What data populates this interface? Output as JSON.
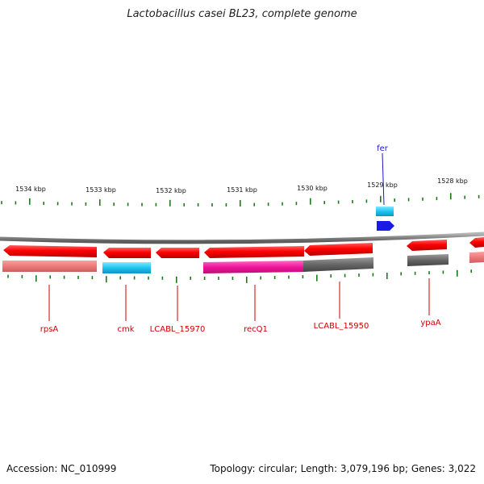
{
  "title": "Lactobacillus casei BL23, complete genome",
  "footer": {
    "accession": "Accession: NC_010999",
    "summary": "Topology: circular; Length: 3,079,196 bp; Genes: 3,022"
  },
  "colors": {
    "backbone": "#8a8a8a",
    "tick": "#1a7a1a",
    "forward_gene": "#ff0000",
    "label_red": "#cc0000",
    "label_blue": "#1515c8"
  },
  "scale_labels": [
    "1534 kbp",
    "1533 kbp",
    "1532 kbp",
    "1531 kbp",
    "1530 kbp",
    "1529 kbp",
    "1528 kbp"
  ],
  "genes": [
    {
      "name": "rpsA",
      "label_color": "#cc0000",
      "strand": "reverse"
    },
    {
      "name": "cmk",
      "label_color": "#cc0000",
      "strand": "reverse"
    },
    {
      "name": "LCABL_15970",
      "label_color": "#cc0000",
      "strand": "reverse"
    },
    {
      "name": "recQ1",
      "label_color": "#cc0000",
      "strand": "reverse"
    },
    {
      "name": "LCABL_15950",
      "label_color": "#cc0000",
      "strand": "reverse"
    },
    {
      "name": "fer",
      "label_color": "#1515c8",
      "strand": "forward"
    },
    {
      "name": "ypaA",
      "label_color": "#cc0000",
      "strand": "reverse"
    }
  ]
}
